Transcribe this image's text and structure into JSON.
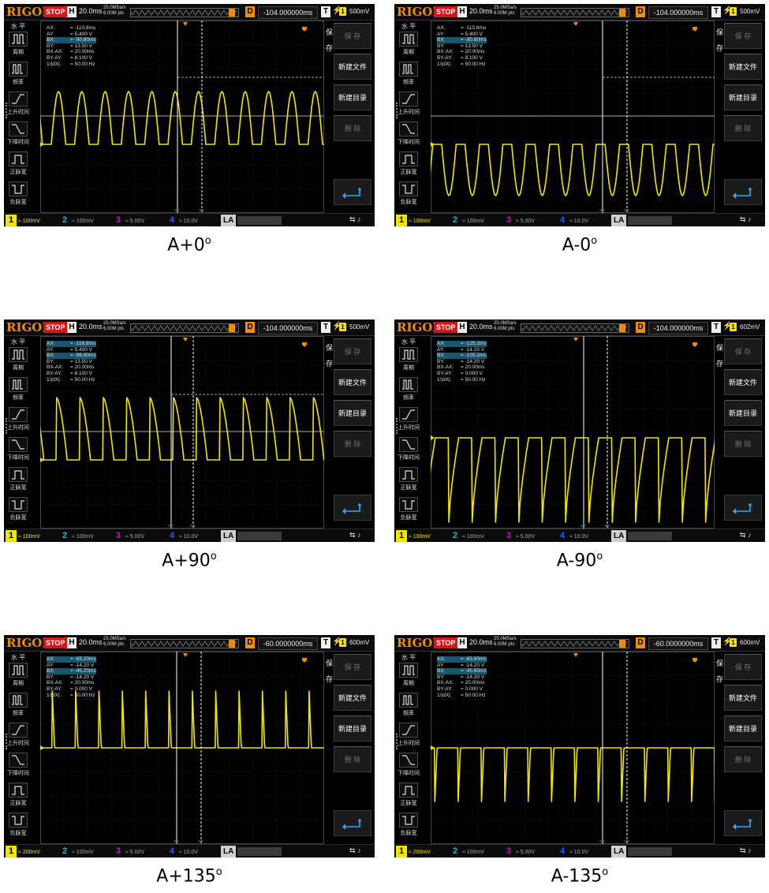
{
  "ui": {
    "logo": "RIGOL",
    "stop": "STOP",
    "h_label": "H",
    "sample_rate": "25.0MSa/s",
    "sample_pts": "6.00M pts",
    "d_label": "D",
    "t_label": "T",
    "left_menu": {
      "title": "水 平",
      "items": [
        "周期",
        "频率",
        "上升时间",
        "下降时间",
        "正脉宽",
        "负脉宽"
      ]
    },
    "right_menu": {
      "tag": "保存",
      "buttons": [
        "保 存",
        "新建文件",
        "新建目录",
        "删 除"
      ]
    },
    "la_label": "LA",
    "channels": [
      {
        "num": "1"
      },
      {
        "num": "2",
        "scale": "100mV"
      },
      {
        "num": "3",
        "scale": "5.00V"
      },
      {
        "num": "4",
        "scale": "10.0V"
      }
    ],
    "meas_keys": [
      "AX:",
      "AY:",
      "BX:",
      "BY:",
      "BX-AX:",
      "BY-AY:",
      "1/|dX|:"
    ]
  },
  "colors": {
    "trace": "#f2e600",
    "cursor": "#ffffff",
    "logo": "#f08c00",
    "stop": "#d41515",
    "highlight": "#17566f"
  },
  "panels": [
    {
      "caption": "A+0",
      "caption_deg": "o",
      "timebase": "20.0ms",
      "delay": "-104.000000ms",
      "trig_level": "500mV",
      "ch1_scale": "100mV",
      "meas": {
        "AX": "= -110.8ms",
        "AY": "= 5.400 V",
        "BX": "= -90.80ms",
        "BY": "= 13.50 V",
        "BX-AX": "= 20.00ms",
        "BY-AY": "= 8.100 V",
        "1/|dX|": "= 50.00 Hz"
      },
      "meas_highlight": [
        "BX"
      ],
      "wave": "sine_up"
    },
    {
      "caption": "A-0",
      "caption_deg": "o",
      "timebase": "20.0ms",
      "delay": "-104.000000ms",
      "trig_level": "500mV",
      "ch1_scale": "100mV",
      "meas": {
        "AX": "= -110.8ms",
        "AY": "= 5.400 V",
        "BX": "= -90.80ms",
        "BY": "= 13.50 V",
        "BX-AX": "= 20.00ms",
        "BY-AY": "= 8.100 V",
        "1/|dX|": "= 50.00 Hz"
      },
      "meas_highlight": [
        "BX"
      ],
      "wave": "sine_down"
    },
    {
      "caption": "A+90",
      "caption_deg": "o",
      "timebase": "20.0ms",
      "delay": "-104.000000ms",
      "trig_level": "500mV",
      "ch1_scale": "100mV",
      "meas": {
        "AX": "= -116.8ms",
        "AY": "= 5.400 V",
        "BX": "= -96.80ms",
        "BY": "= 13.50 V",
        "BX-AX": "= 20.00ms",
        "BY-AY": "= 8.100 V",
        "1/|dX|": "= 50.00 Hz"
      },
      "meas_highlight": [
        "AX",
        "BX"
      ],
      "wave": "saw_up"
    },
    {
      "caption": "A-90",
      "caption_deg": "o",
      "timebase": "20.0ms",
      "delay": "-104.000000ms",
      "trig_level": "602mV",
      "ch1_scale": "100mV",
      "meas": {
        "AX": "= -125.2ms",
        "AY": "= -14.20 V",
        "BX": "= -105.2ms",
        "BY": "= -14.20 V",
        "BX-AX": "= 20.00ms",
        "BY-AY": "= 0.000 V",
        "1/|dX|": "= 50.00 Hz"
      },
      "meas_highlight": [
        "AX",
        "BX"
      ],
      "wave": "saw_down"
    },
    {
      "caption": "A+135",
      "caption_deg": "o",
      "timebase": "20.0ms",
      "delay": "-60.0000000ms",
      "trig_level": "600mV",
      "ch1_scale": "200mV",
      "meas": {
        "AX": "= -65.20ms",
        "AY": "= -14.20 V",
        "BX": "= -45.20ms",
        "BY": "= -14.20 V",
        "BX-AX": "= 20.00ms",
        "BY-AY": "= 0.000 V",
        "1/|dX|": "= 50.00 Hz"
      },
      "meas_highlight": [
        "AX",
        "BX"
      ],
      "wave": "spike_up"
    },
    {
      "caption": "A-135",
      "caption_deg": "o",
      "timebase": "20.0ms",
      "delay": "-60.0000000ms",
      "trig_level": "600mV",
      "ch1_scale": "200mV",
      "meas": {
        "AX": "= -65.60ms",
        "AY": "= -14.20 V",
        "BX": "= -45.60ms",
        "BY": "= -14.20 V",
        "BX-AX": "= 20.00ms",
        "BY-AY": "= 0.000 V",
        "1/|dX|": "= 50.00 Hz"
      },
      "meas_highlight": [
        "AX",
        "BX"
      ],
      "wave": "spike_down"
    }
  ]
}
